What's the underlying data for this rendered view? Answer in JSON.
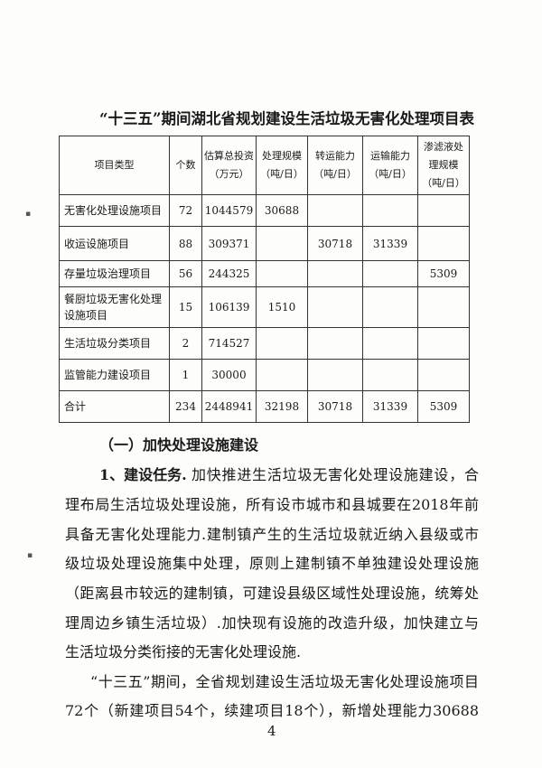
{
  "title": "“十三五”期间湖北省规划建设生活垃圾无害化处理项目表",
  "table": {
    "headers": [
      "项目类型",
      "个数",
      "估算总投资（万元）",
      "处理规模（吨/日）",
      "转运能力（吨/日）",
      "运输能力（吨/日）",
      "渗滤液处理规模（吨/日）"
    ],
    "rows": [
      [
        "无害化处理设施项目",
        "72",
        "1044579",
        "30688",
        "",
        "",
        ""
      ],
      [
        "收运设施项目",
        "88",
        "309371",
        "",
        "30718",
        "31339",
        ""
      ],
      [
        "存量垃圾治理项目",
        "56",
        "244325",
        "",
        "",
        "",
        "5309"
      ],
      [
        "餐厨垃圾无害化处理设施项目",
        "15",
        "106139",
        "1510",
        "",
        "",
        ""
      ],
      [
        "生活垃圾分类项目",
        "2",
        "714527",
        "",
        "",
        "",
        ""
      ],
      [
        "监管能力建设项目",
        "1",
        "30000",
        "",
        "",
        "",
        ""
      ],
      [
        "合计",
        "234",
        "2448941",
        "32198",
        "30718",
        "31339",
        "5309"
      ]
    ]
  },
  "section_heading": "（一）加快处理设施建设",
  "para1_lead": "1、建设任务.",
  "para1_lines": [
    "加快推进生活垃圾无害化处理设施建设，合",
    "理布局生活垃圾处理设施，所有设市城市和县城要在2018年前",
    "具备无害化处理能力.建制镇产生的生活垃圾就近纳入县级或市",
    "级垃圾处理设施集中处理，原则上建制镇不单独建设处理设施",
    "（距离县市较远的建制镇，可建设县级区域性处理设施，统筹处",
    "理周边乡镇生活垃圾）.加快现有设施的改造升级，加快建立与",
    "生活垃圾分类衔接的无害化处理设施."
  ],
  "para2_lines": [
    "“十三五”期间，全省规划建设生活垃圾无害化处理设施项目",
    "72个（新建项目54个，续建项目18个），新增处理能力30688"
  ],
  "page_number": "4"
}
